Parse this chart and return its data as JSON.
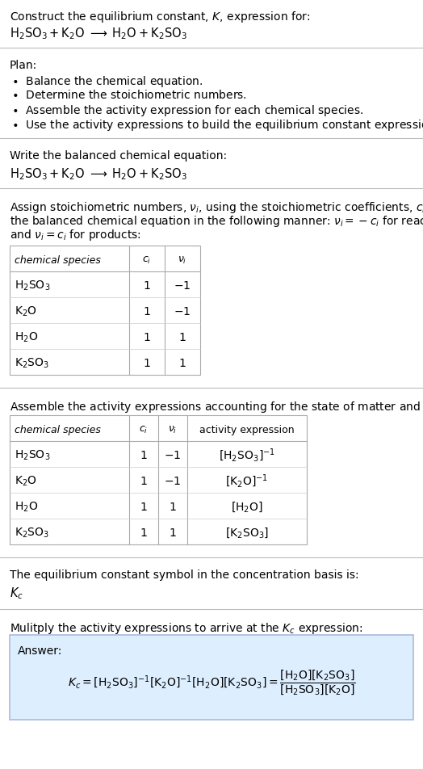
{
  "title_line1": "Construct the equilibrium constant, $K$, expression for:",
  "title_eq": "$\\mathrm{H_2SO_3 + K_2O \\;\\longrightarrow\\; H_2O + K_2SO_3}$",
  "plan_header": "Plan:",
  "plan_items": [
    "\\textbullet\\; Balance the chemical equation.",
    "\\textbullet\\; Determine the stoichiometric numbers.",
    "\\textbullet\\; Assemble the activity expression for each chemical species.",
    "\\textbullet\\; Use the activity expressions to build the equilibrium constant expression."
  ],
  "balanced_header": "Write the balanced chemical equation:",
  "balanced_eq": "$\\mathrm{H_2SO_3 + K_2O \\;\\longrightarrow\\; H_2O + K_2SO_3}$",
  "stoich_intro_lines": [
    "Assign stoichiometric numbers, $\\nu_i$, using the stoichiometric coefficients, $c_i$, from",
    "the balanced chemical equation in the following manner: $\\nu_i = -c_i$ for reactants",
    "and $\\nu_i = c_i$ for products:"
  ],
  "table1_headers": [
    "chemical species",
    "$c_i$",
    "$\\nu_i$"
  ],
  "table1_rows": [
    [
      "$\\mathrm{H_2SO_3}$",
      "1",
      "$-1$"
    ],
    [
      "$\\mathrm{K_2O}$",
      "1",
      "$-1$"
    ],
    [
      "$\\mathrm{H_2O}$",
      "1",
      "$1$"
    ],
    [
      "$\\mathrm{K_2SO_3}$",
      "1",
      "$1$"
    ]
  ],
  "activity_intro": "Assemble the activity expressions accounting for the state of matter and $\\nu_i$:",
  "table2_headers": [
    "chemical species",
    "$c_i$",
    "$\\nu_i$",
    "activity expression"
  ],
  "table2_rows": [
    [
      "$\\mathrm{H_2SO_3}$",
      "1",
      "$-1$",
      "$[\\mathrm{H_2SO_3}]^{-1}$"
    ],
    [
      "$\\mathrm{K_2O}$",
      "1",
      "$-1$",
      "$[\\mathrm{K_2O}]^{-1}$"
    ],
    [
      "$\\mathrm{H_2O}$",
      "1",
      "$1$",
      "$[\\mathrm{H_2O}]$"
    ],
    [
      "$\\mathrm{K_2SO_3}$",
      "1",
      "$1$",
      "$[\\mathrm{K_2SO_3}]$"
    ]
  ],
  "kc_intro": "The equilibrium constant symbol in the concentration basis is:",
  "kc_symbol": "$K_c$",
  "multiply_intro": "Mulitply the activity expressions to arrive at the $K_c$ expression:",
  "answer_label": "Answer:",
  "bg_color": "#ffffff",
  "answer_bg": "#ddeeff",
  "answer_border": "#aabbdd",
  "divider_color": "#bbbbbb",
  "table_border": "#aaaaaa",
  "table_inner": "#cccccc"
}
